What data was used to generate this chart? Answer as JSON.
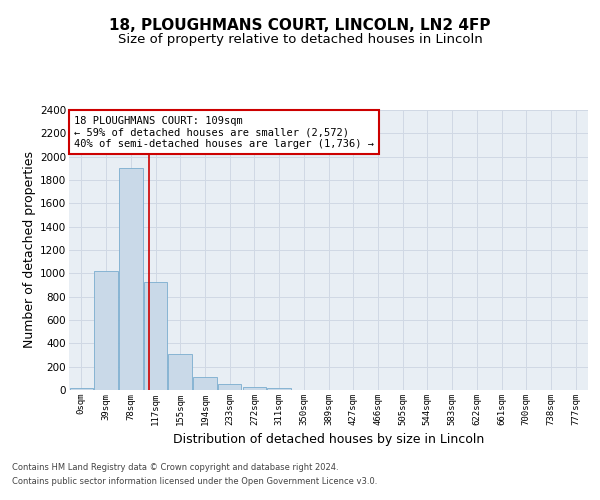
{
  "title1": "18, PLOUGHMANS COURT, LINCOLN, LN2 4FP",
  "title2": "Size of property relative to detached houses in Lincoln",
  "xlabel": "Distribution of detached houses by size in Lincoln",
  "ylabel": "Number of detached properties",
  "bar_labels": [
    "0sqm",
    "39sqm",
    "78sqm",
    "117sqm",
    "155sqm",
    "194sqm",
    "233sqm",
    "272sqm",
    "311sqm",
    "350sqm",
    "389sqm",
    "427sqm",
    "466sqm",
    "505sqm",
    "544sqm",
    "583sqm",
    "622sqm",
    "661sqm",
    "700sqm",
    "738sqm",
    "777sqm"
  ],
  "bar_values": [
    20,
    1020,
    1900,
    925,
    310,
    110,
    55,
    30,
    18,
    0,
    0,
    0,
    0,
    0,
    0,
    0,
    0,
    0,
    0,
    0,
    0
  ],
  "bar_color": "#c9d9e8",
  "bar_edge_color": "#7aadcf",
  "vline_x": 2.72,
  "vline_color": "#cc0000",
  "annotation_line1": "18 PLOUGHMANS COURT: 109sqm",
  "annotation_line2": "← 59% of detached houses are smaller (2,572)",
  "annotation_line3": "40% of semi-detached houses are larger (1,736) →",
  "annotation_box_color": "#ffffff",
  "annotation_box_edge": "#cc0000",
  "ylim": [
    0,
    2400
  ],
  "yticks": [
    0,
    200,
    400,
    600,
    800,
    1000,
    1200,
    1400,
    1600,
    1800,
    2000,
    2200,
    2400
  ],
  "grid_color": "#d0d8e4",
  "bg_color": "#e8eef4",
  "footer1": "Contains HM Land Registry data © Crown copyright and database right 2024.",
  "footer2": "Contains public sector information licensed under the Open Government Licence v3.0.",
  "title1_fontsize": 11,
  "title2_fontsize": 9.5,
  "xlabel_fontsize": 9,
  "ylabel_fontsize": 9,
  "annotation_fontsize": 7.5
}
